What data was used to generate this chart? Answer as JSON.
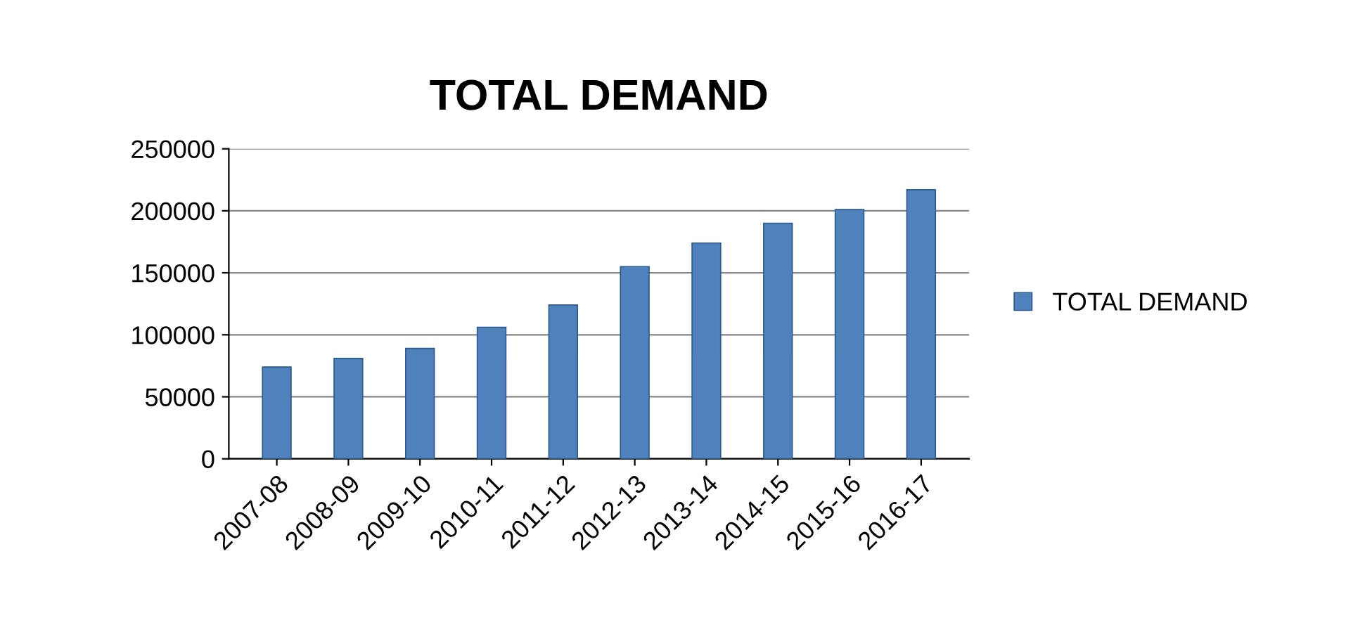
{
  "chart_data": {
    "type": "bar",
    "title": "TOTAL DEMAND",
    "categories": [
      "2007-08",
      "2008-09",
      "2009-10",
      "2010-11",
      "2011-12",
      "2012-13",
      "2013-14",
      "2014-15",
      "2015-16",
      "2016-17"
    ],
    "series": [
      {
        "name": "TOTAL DEMAND",
        "color": "#4f81bd",
        "values": [
          74000,
          81000,
          89000,
          106000,
          124000,
          155000,
          174000,
          190000,
          201000,
          217000
        ]
      }
    ],
    "ylim": [
      0,
      250000
    ],
    "yticks": [
      0,
      50000,
      100000,
      150000,
      200000,
      250000
    ],
    "grid": "y",
    "legend": "right"
  }
}
